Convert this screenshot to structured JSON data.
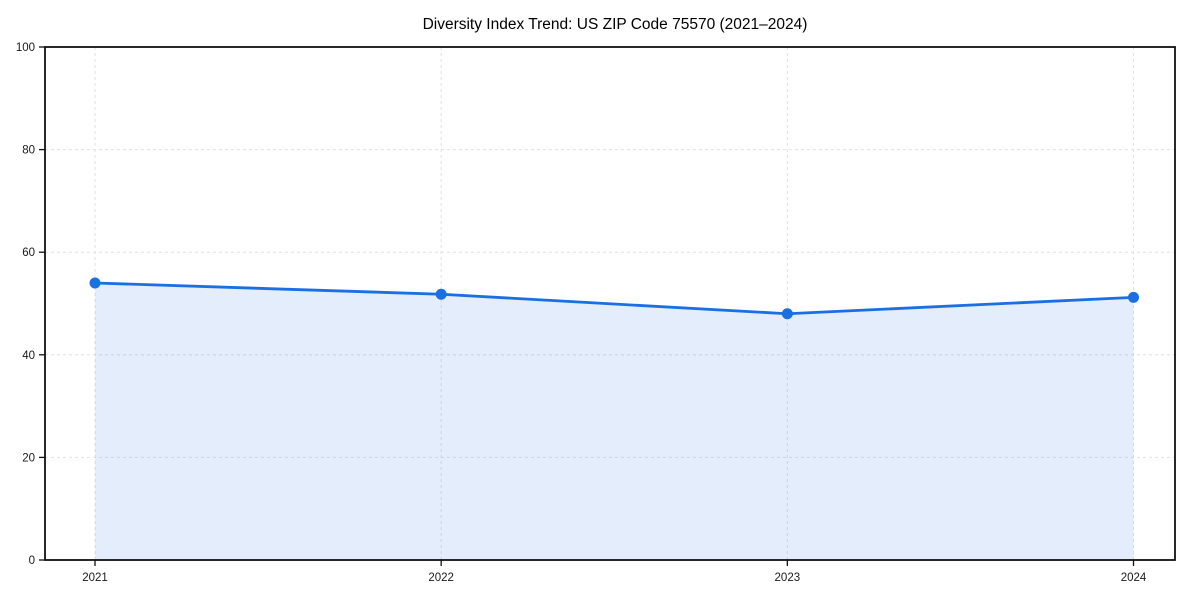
{
  "chart_data": {
    "type": "area",
    "title": "Diversity Index Trend: US ZIP Code 75570 (2021–2024)",
    "x": [
      2021,
      2022,
      2023,
      2024
    ],
    "categories": [
      "2021",
      "2022",
      "2023",
      "2024"
    ],
    "series": [
      {
        "name": "Diversity Index",
        "values": [
          54,
          51.8,
          48,
          51.2
        ]
      }
    ],
    "xlabel": "",
    "ylabel": "",
    "ylim": [
      0,
      100
    ],
    "yticks": [
      0,
      20,
      40,
      60,
      80,
      100
    ],
    "grid": true,
    "grid_style": "dashed",
    "legend_position": "none",
    "colors": {
      "line": "#1a6fe3",
      "marker": "#1a6fe3",
      "fill": "#1a6fe3",
      "fill_opacity": 0.12,
      "grid": "#e2e2e2",
      "spine": "#111111",
      "tick_label": "#1a1a1a",
      "background": "#ffffff"
    },
    "style": {
      "line_width": 2.8,
      "marker_radius": 5.5
    }
  }
}
